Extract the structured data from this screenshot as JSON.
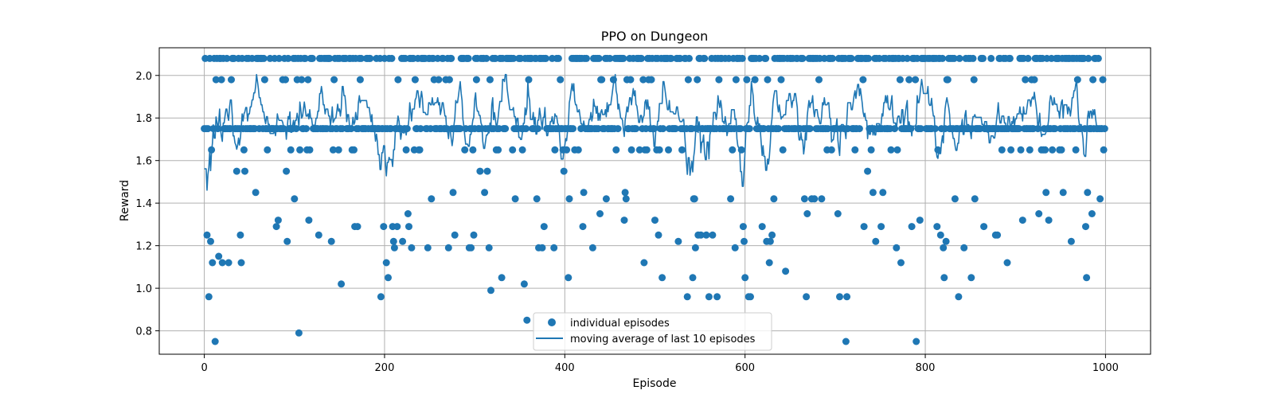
{
  "chart_data": {
    "type": "scatter",
    "title": "PPO on Dungeon",
    "xlabel": "Episode",
    "ylabel": "Reward",
    "xlim": [
      -50,
      1050
    ],
    "ylim": [
      0.69,
      2.13
    ],
    "xticks": [
      0,
      200,
      400,
      600,
      800,
      1000
    ],
    "yticks": [
      0.8,
      1.0,
      1.2,
      1.4,
      1.6,
      1.8,
      2.0
    ],
    "grid": true,
    "legend_position": "lower center",
    "color": "#1f77b4",
    "legend": [
      {
        "label": "individual episodes",
        "kind": "scatter"
      },
      {
        "label": "moving average of last 10 episodes",
        "kind": "line"
      }
    ],
    "series": [
      {
        "name": "individual episodes",
        "kind": "scatter",
        "x": [],
        "y": []
      },
      {
        "name": "moving average of last 10 episodes",
        "kind": "line",
        "x": [],
        "y": []
      }
    ]
  }
}
